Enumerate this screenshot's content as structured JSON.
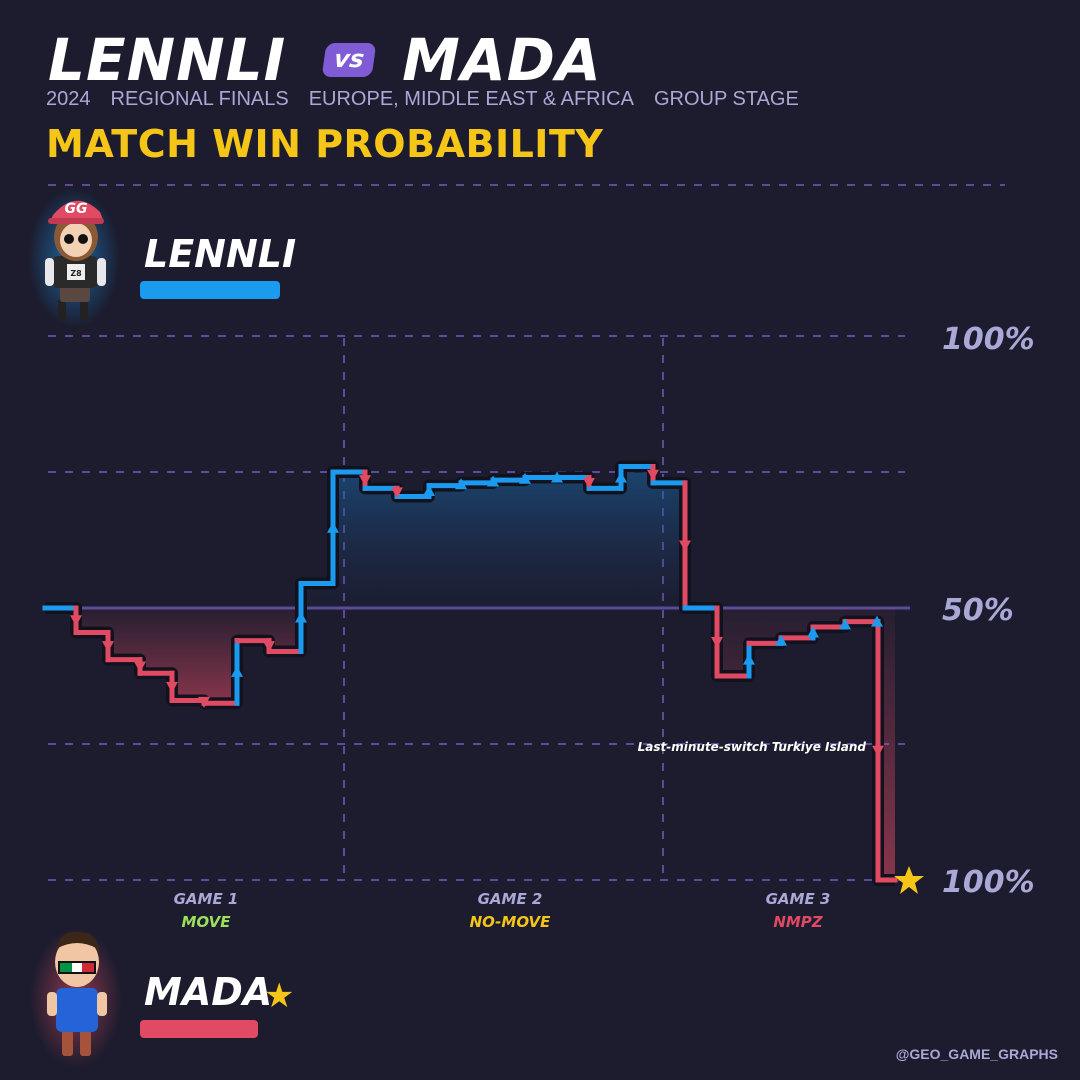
{
  "header": {
    "player1": "LENNLI",
    "vs": "vs",
    "player2": "MADA",
    "meta": [
      "2024",
      "REGIONAL FINALS",
      "EUROPE, MIDDLE EAST & AFRICA",
      "GROUP STAGE"
    ],
    "title": "MATCH WIN PROBABILITY"
  },
  "players": {
    "top": {
      "name": "LENNLI",
      "color": "#1a9bf0",
      "cap_text": "GG"
    },
    "bottom": {
      "name": "MADA",
      "color": "#e04a63",
      "winner_icon": "star-icon"
    }
  },
  "colors": {
    "lennli": "#1a9bf0",
    "mada": "#e04a63",
    "gold": "#f5c518",
    "axis": "#5b4b99",
    "label": "#a9a8d6"
  },
  "chart_data": {
    "type": "line",
    "step": true,
    "y_tick_labels": [
      "100%",
      "50%",
      "100%"
    ],
    "y_meaning": "positive = LENNLI win probability, negative = MADA win probability",
    "ylim": [
      -100,
      100
    ],
    "grid": true,
    "games": [
      {
        "label": "GAME 1",
        "mode": "MOVE",
        "mode_color": "#9be15d"
      },
      {
        "label": "GAME 2",
        "mode": "NO-MOVE",
        "mode_color": "#f5c518"
      },
      {
        "label": "GAME 3",
        "mode": "NMPZ",
        "mode_color": "#e04a63"
      }
    ],
    "series": [
      {
        "name": "LENNLI",
        "x": [
          0,
          1,
          2,
          3,
          4,
          5,
          6,
          7,
          8,
          9,
          10,
          11,
          12,
          13,
          14,
          15,
          16,
          17,
          18,
          19,
          20,
          21,
          22,
          23,
          24,
          25,
          26,
          27
        ],
        "y": [
          0,
          -9,
          -19,
          -24,
          -34,
          -35,
          -12,
          -16,
          9,
          50,
          44,
          41,
          45,
          46,
          47,
          48,
          48,
          44,
          52,
          46,
          0,
          -25,
          -13,
          -11,
          -7,
          -5,
          -5,
          -100
        ],
        "markers": [
          "",
          "down",
          "down",
          "down",
          "down",
          "down",
          "up",
          "down",
          "up",
          "up",
          "down",
          "down",
          "up",
          "up",
          "up",
          "up",
          "up",
          "down",
          "up",
          "down",
          "down",
          "down",
          "up",
          "up",
          "up",
          "up",
          "up",
          "down"
        ]
      }
    ],
    "annotations": [
      {
        "text": "Last-minute-switch Turkiye Island"
      }
    ],
    "winner": "MADA"
  },
  "footer": {
    "watermark": "@GEO_GAME_GRAPHS"
  }
}
